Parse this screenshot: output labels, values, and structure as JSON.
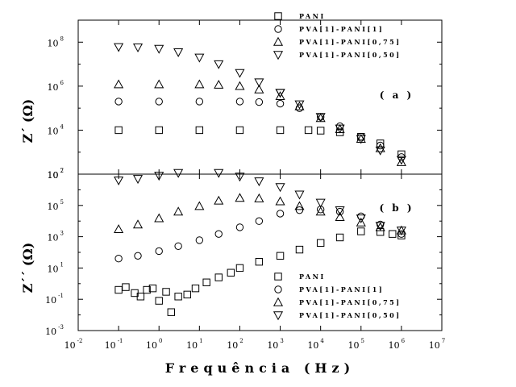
{
  "chart_data": {
    "type": "scatter",
    "xlabel": "Frequência (Hz)",
    "x_scale": "log",
    "xlim": [
      0.01,
      10000000
    ],
    "x_ticks": [
      {
        "mant": "10",
        "exp": "-2"
      },
      {
        "mant": "10",
        "exp": "-1"
      },
      {
        "mant": "10",
        "exp": "0"
      },
      {
        "mant": "10",
        "exp": "1"
      },
      {
        "mant": "10",
        "exp": "2"
      },
      {
        "mant": "10",
        "exp": "3"
      },
      {
        "mant": "10",
        "exp": "4"
      },
      {
        "mant": "10",
        "exp": "5"
      },
      {
        "mant": "10",
        "exp": "6"
      },
      {
        "mant": "10",
        "exp": "7"
      }
    ],
    "series_names": [
      "PANI",
      "PVA[1]-PANI[1]",
      "PVA[1]-PANI[0,75]",
      "PVA[1]-PANI[0,50]"
    ],
    "marker_shapes": [
      "square",
      "circle",
      "triangle-up",
      "triangle-down"
    ],
    "panels": [
      {
        "id": "a",
        "label": "( a )",
        "ylabel": "Z´ (Ω)",
        "y_scale": "log",
        "ylim": [
          100,
          1000000000
        ],
        "y_ticks": [
          {
            "mant": "10",
            "exp": "2"
          },
          {
            "mant": "10",
            "exp": "4"
          },
          {
            "mant": "10",
            "exp": "6"
          },
          {
            "mant": "10",
            "exp": "8"
          }
        ],
        "legend_position": "top-right",
        "series": [
          {
            "name": "PANI",
            "marker": "square",
            "points": [
              [
                0.1,
                10000
              ],
              [
                1,
                10000
              ],
              [
                10,
                10000
              ],
              [
                100,
                10000
              ],
              [
                1000,
                10000
              ],
              [
                5000,
                10000
              ],
              [
                10000,
                9500
              ],
              [
                30000,
                8000
              ],
              [
                100000,
                5000
              ],
              [
                300000,
                2500
              ],
              [
                1000000,
                800
              ]
            ]
          },
          {
            "name": "PVA[1]-PANI[1]",
            "marker": "circle",
            "points": [
              [
                0.1,
                200000
              ],
              [
                1,
                200000
              ],
              [
                10,
                200000
              ],
              [
                100,
                200000
              ],
              [
                300,
                190000
              ],
              [
                1000,
                160000
              ],
              [
                3000,
                100000
              ],
              [
                10000,
                40000
              ],
              [
                30000,
                15000
              ],
              [
                100000,
                5000
              ],
              [
                300000,
                2000
              ],
              [
                1000000,
                600
              ]
            ]
          },
          {
            "name": "PVA[1]-PANI[0,75]",
            "marker": "triangle-up",
            "points": [
              [
                0.1,
                1200000
              ],
              [
                1,
                1200000
              ],
              [
                10,
                1200000
              ],
              [
                30,
                1150000
              ],
              [
                100,
                1000000
              ],
              [
                300,
                700000
              ],
              [
                1000,
                350000
              ],
              [
                3000,
                120000
              ],
              [
                10000,
                35000
              ],
              [
                30000,
                11000
              ],
              [
                100000,
                4000
              ],
              [
                300000,
                1500
              ],
              [
                1000000,
                350
              ]
            ]
          },
          {
            "name": "PVA[1]-PANI[0,50]",
            "marker": "triangle-down",
            "points": [
              [
                0.1,
                60000000
              ],
              [
                0.3,
                58000000
              ],
              [
                1,
                50000000
              ],
              [
                3,
                35000000
              ],
              [
                10,
                20000000
              ],
              [
                30,
                10000000
              ],
              [
                100,
                4000000
              ],
              [
                300,
                1500000
              ],
              [
                1000,
                500000
              ],
              [
                3000,
                150000
              ],
              [
                10000,
                40000
              ],
              [
                30000,
                12000
              ],
              [
                100000,
                4000
              ],
              [
                300000,
                1200
              ],
              [
                1000,
                500000
              ],
              [
                1000000,
                450
              ]
            ]
          }
        ]
      },
      {
        "id": "b",
        "label": "( b )",
        "ylabel": "Z´´ (Ω)",
        "y_scale": "log",
        "ylim": [
          0.001,
          10000000
        ],
        "y_ticks": [
          {
            "mant": "10",
            "exp": "-3"
          },
          {
            "mant": "10",
            "exp": "-1"
          },
          {
            "mant": "10",
            "exp": "1"
          },
          {
            "mant": "10",
            "exp": "3"
          },
          {
            "mant": "10",
            "exp": "5"
          },
          {
            "mant": "10",
            "exp": "7"
          }
        ],
        "legend_position": "bottom-right",
        "series": [
          {
            "name": "PANI",
            "marker": "square",
            "points": [
              [
                0.1,
                0.4
              ],
              [
                0.15,
                0.6
              ],
              [
                0.25,
                0.25
              ],
              [
                0.35,
                0.15
              ],
              [
                0.5,
                0.4
              ],
              [
                0.7,
                0.5
              ],
              [
                1,
                0.08
              ],
              [
                1.5,
                0.3
              ],
              [
                2,
                0.015
              ],
              [
                3,
                0.15
              ],
              [
                5,
                0.2
              ],
              [
                8,
                0.5
              ],
              [
                15,
                1.2
              ],
              [
                30,
                2.5
              ],
              [
                60,
                5
              ],
              [
                100,
                10
              ],
              [
                300,
                25
              ],
              [
                1000,
                60
              ],
              [
                3000,
                150
              ],
              [
                10000,
                400
              ],
              [
                30000,
                900
              ],
              [
                100000,
                2200
              ],
              [
                300000,
                2000
              ],
              [
                600000,
                1500
              ],
              [
                1000000,
                1200
              ]
            ]
          },
          {
            "name": "PVA[1]-PANI[1]",
            "marker": "circle",
            "points": [
              [
                0.1,
                40
              ],
              [
                0.3,
                60
              ],
              [
                1,
                120
              ],
              [
                3,
                250
              ],
              [
                10,
                600
              ],
              [
                30,
                1500
              ],
              [
                100,
                4000
              ],
              [
                300,
                10000
              ],
              [
                1000,
                30000
              ],
              [
                3000,
                50000
              ],
              [
                10000,
                55000
              ],
              [
                30000,
                40000
              ],
              [
                100000,
                20000
              ],
              [
                300000,
                6000
              ],
              [
                1000000,
                1500
              ]
            ]
          },
          {
            "name": "PVA[1]-PANI[0,75]",
            "marker": "triangle-up",
            "points": [
              [
                0.1,
                3000
              ],
              [
                0.3,
                6000
              ],
              [
                1,
                15000
              ],
              [
                3,
                40000
              ],
              [
                10,
                90000
              ],
              [
                30,
                200000
              ],
              [
                100,
                300000
              ],
              [
                300,
                280000
              ],
              [
                1000,
                180000
              ],
              [
                3000,
                90000
              ],
              [
                10000,
                40000
              ],
              [
                30000,
                18000
              ],
              [
                100000,
                8000
              ],
              [
                300000,
                4000
              ],
              [
                1000000,
                2500
              ]
            ]
          },
          {
            "name": "PVA[1]-PANI[0,50]",
            "marker": "triangle-down",
            "points": [
              [
                0.1,
                4000000
              ],
              [
                0.3,
                5000000
              ],
              [
                1,
                8000000
              ],
              [
                3,
                12000000
              ],
              [
                10,
                15000000
              ],
              [
                30,
                12000000
              ],
              [
                100,
                7000000
              ],
              [
                300,
                3500000
              ],
              [
                1000,
                1500000
              ],
              [
                3000,
                500000
              ],
              [
                10000,
                150000
              ],
              [
                30000,
                50000
              ],
              [
                100000,
                15000
              ],
              [
                300000,
                5000
              ],
              [
                1000000,
                2500
              ]
            ]
          }
        ]
      }
    ]
  }
}
